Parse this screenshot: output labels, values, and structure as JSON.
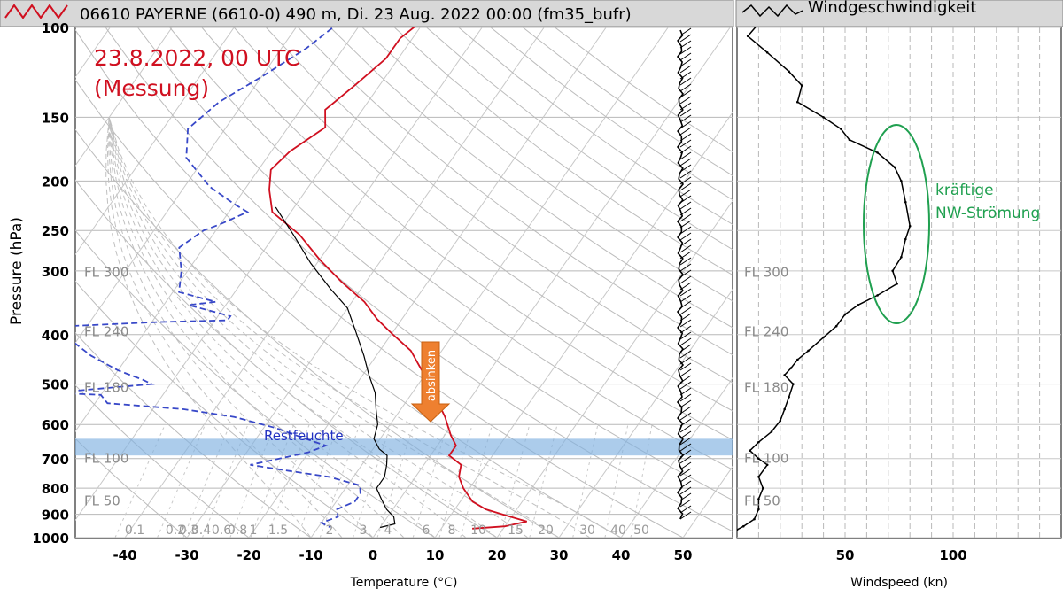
{
  "left_panel": {
    "title": "06610 PAYERNE (6610-0) 490 m, Di. 23 Aug. 2022 00:00 (fm35_bufr)",
    "annotation_date": "23.8.2022, 00 UTC",
    "annotation_source": "(Messung)",
    "arrow_label": "absinken",
    "band_label": "Restfeuchte",
    "xlabel": "Temperature (°C)",
    "ylabel": "Pressure (hPa)"
  },
  "right_panel": {
    "title": "Windgeschwindigkeit",
    "xlabel": "Windspeed (kn)",
    "annotation_line1": "kräftige",
    "annotation_line2": "NW-Strömung"
  },
  "colors": {
    "temperature": "#d01020",
    "dewpoint": "#3848c8",
    "band": "#7fb0e0",
    "arrow": "#ee8030",
    "annotation_red": "#d01020",
    "annotation_green": "#20a050",
    "band_text": "#2030c0"
  },
  "chart_data": [
    {
      "type": "line",
      "title": "06610 PAYERNE (6610-0) 490 m, Di. 23 Aug. 2022 00:00 (fm35_bufr)",
      "xlabel": "Temperature (°C)",
      "ylabel": "Pressure (hPa)",
      "xlim": [
        -48,
        58
      ],
      "ylim": [
        1000,
        100
      ],
      "yscale": "log",
      "x_ticks": [
        -40,
        -30,
        -20,
        -10,
        0,
        10,
        20,
        30,
        40,
        50
      ],
      "y_ticks": [
        100,
        150,
        200,
        250,
        300,
        400,
        500,
        600,
        700,
        800,
        900,
        1000
      ],
      "flight_levels": [
        {
          "label": "FL 300",
          "p": 301
        },
        {
          "label": "FL 240",
          "p": 393
        },
        {
          "label": "FL 180",
          "p": 506
        },
        {
          "label": "FL 100",
          "p": 697
        },
        {
          "label": "FL 50",
          "p": 843
        }
      ],
      "mixing_ratio_labels": [
        "0.1",
        "0.2",
        "0.3",
        "0.4",
        "0.6",
        "0.8",
        "1",
        "1.5",
        "2",
        "3",
        "4",
        "6",
        "8",
        "10",
        "15",
        "20",
        "30",
        "40",
        "50"
      ],
      "band_hpa": [
        640,
        690
      ],
      "series": [
        {
          "style": "solid",
          "color": "#d01020",
          "points": [
            [
              -50,
              95
            ],
            [
              -52,
              105
            ],
            [
              -52,
              115
            ],
            [
              -54,
              130
            ],
            [
              -56,
              145
            ],
            [
              -54,
              157
            ],
            [
              -57,
              175
            ],
            [
              -58,
              190
            ],
            [
              -56,
              208
            ],
            [
              -53,
              230
            ],
            [
              -46,
              255
            ],
            [
              -40,
              285
            ],
            [
              -34,
              315
            ],
            [
              -28,
              345
            ],
            [
              -24,
              373
            ],
            [
              -20,
              398
            ],
            [
              -15,
              430
            ],
            [
              -11,
              470
            ],
            [
              -7,
              510
            ],
            [
              -5,
              540
            ],
            [
              -2,
              580
            ],
            [
              1,
              630
            ],
            [
              3,
              660
            ],
            [
              3,
              690
            ],
            [
              6,
              720
            ],
            [
              7,
              760
            ],
            [
              9,
              800
            ],
            [
              12,
              850
            ],
            [
              15,
              880
            ],
            [
              19,
              905
            ],
            [
              23,
              930
            ],
            [
              20,
              950
            ],
            [
              15,
              960
            ]
          ]
        },
        {
          "style": "solid",
          "color": "#000000",
          "points": [
            [
              -53,
              225
            ],
            [
              -47,
              255
            ],
            [
              -41,
              290
            ],
            [
              -35,
              325
            ],
            [
              -30,
              355
            ],
            [
              -26,
              395
            ],
            [
              -22,
              440
            ],
            [
              -19,
              480
            ],
            [
              -16,
              520
            ],
            [
              -14,
              560
            ],
            [
              -12,
              600
            ],
            [
              -11,
              640
            ],
            [
              -9,
              670
            ],
            [
              -7,
              690
            ],
            [
              -6,
              720
            ],
            [
              -5,
              760
            ],
            [
              -5,
              800
            ],
            [
              -3,
              840
            ],
            [
              -1,
              880
            ],
            [
              1,
              910
            ],
            [
              2,
              940
            ],
            [
              0,
              955
            ]
          ]
        },
        {
          "style": "dashed",
          "color": "#3848c8",
          "points": [
            [
              -63,
              95
            ],
            [
              -66,
              110
            ],
            [
              -70,
              125
            ],
            [
              -74,
              140
            ],
            [
              -76,
              158
            ],
            [
              -73,
              180
            ],
            [
              -66,
              205
            ],
            [
              -60,
              222
            ],
            [
              -57,
              230
            ],
            [
              -60,
              243
            ],
            [
              -62,
              250
            ],
            [
              -64,
              270
            ],
            [
              -61,
              300
            ],
            [
              -59,
              330
            ],
            [
              -52,
              345
            ],
            [
              -56,
              350
            ],
            [
              -48,
              368
            ],
            [
              -48,
              375
            ],
            [
              -59,
              378
            ],
            [
              -73,
              385
            ],
            [
              -71,
              410
            ],
            [
              -66,
              440
            ],
            [
              -60,
              470
            ],
            [
              -55,
              490
            ],
            [
              -53,
              500
            ],
            [
              -68,
              520
            ],
            [
              -60,
              525
            ],
            [
              -58,
              545
            ],
            [
              -45,
              560
            ],
            [
              -36,
              580
            ],
            [
              -28,
              610
            ],
            [
              -22,
              640
            ],
            [
              -18,
              660
            ],
            [
              -20,
              680
            ],
            [
              -24,
              700
            ],
            [
              -28,
              720
            ],
            [
              -21,
              740
            ],
            [
              -14,
              760
            ],
            [
              -8,
              790
            ],
            [
              -7,
              820
            ],
            [
              -7,
              850
            ],
            [
              -9,
              880
            ],
            [
              -8,
              910
            ],
            [
              -10,
              935
            ],
            [
              -8,
              955
            ]
          ]
        }
      ]
    },
    {
      "type": "line",
      "title": "Windgeschwindigkeit",
      "xlabel": "Windspeed (kn)",
      "xlim": [
        0,
        150
      ],
      "x_ticks": [
        50,
        100
      ],
      "yscale": "log",
      "ylim": [
        1000,
        100
      ],
      "flight_levels": [
        {
          "label": "FL 300",
          "p": 301
        },
        {
          "label": "FL 240",
          "p": 393
        },
        {
          "label": "FL 180",
          "p": 506
        },
        {
          "label": "FL 100",
          "p": 697
        },
        {
          "label": "FL 50",
          "p": 843
        }
      ],
      "series": [
        {
          "color": "#000000",
          "points": [
            [
              12,
              96
            ],
            [
              5,
              104
            ],
            [
              14,
              112
            ],
            [
              24,
              122
            ],
            [
              30,
              130
            ],
            [
              28,
              140
            ],
            [
              40,
              150
            ],
            [
              48,
              158
            ],
            [
              52,
              166
            ],
            [
              65,
              176
            ],
            [
              73,
              188
            ],
            [
              76,
              200
            ],
            [
              78,
              220
            ],
            [
              80,
              245
            ],
            [
              78,
              260
            ],
            [
              76,
              282
            ],
            [
              72,
              300
            ],
            [
              74,
              318
            ],
            [
              65,
              335
            ],
            [
              56,
              350
            ],
            [
              50,
              365
            ],
            [
              46,
              385
            ],
            [
              40,
              405
            ],
            [
              33,
              430
            ],
            [
              28,
              448
            ],
            [
              25,
              465
            ],
            [
              22,
              480
            ],
            [
              26,
              500
            ],
            [
              24,
              530
            ],
            [
              22,
              560
            ],
            [
              20,
              590
            ],
            [
              16,
              620
            ],
            [
              10,
              650
            ],
            [
              6,
              675
            ],
            [
              10,
              700
            ],
            [
              14,
              720
            ],
            [
              10,
              760
            ],
            [
              12,
              800
            ],
            [
              10,
              840
            ],
            [
              10,
              880
            ],
            [
              8,
              920
            ],
            [
              3,
              950
            ],
            [
              0,
              965
            ]
          ]
        }
      ],
      "annotation": {
        "text_lines": [
          "kräftige",
          "NW-Strömung"
        ],
        "color": "#20a050"
      }
    }
  ]
}
